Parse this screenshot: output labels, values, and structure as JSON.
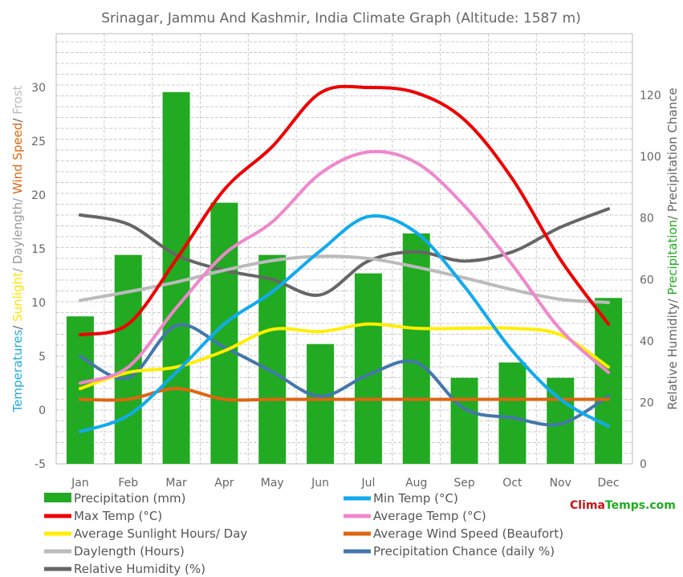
{
  "chart_data": {
    "type": "bar",
    "title": "Srinagar, Jammu And Kashmir, India Climate Graph (Altitude: 1587 m)",
    "categories": [
      "Jan",
      "Feb",
      "Mar",
      "Apr",
      "May",
      "Jun",
      "Jul",
      "Aug",
      "Sep",
      "Oct",
      "Nov",
      "Dec"
    ],
    "y_left": {
      "ticks": [
        "-5",
        "0",
        "5",
        "10",
        "15",
        "20",
        "25",
        "30"
      ],
      "ylim": [
        -5,
        35
      ],
      "label_parts": [
        {
          "text": "Temperatures",
          "color": "#22aadd"
        },
        {
          "text": "/ ",
          "color": "#666666"
        },
        {
          "text": "Sunlight",
          "color": "#ffe600"
        },
        {
          "text": "/ Daylength/ ",
          "color": "#999999"
        },
        {
          "text": "Wind Speed",
          "color": "#dd6611"
        },
        {
          "text": "/ ",
          "color": "#666666"
        },
        {
          "text": "Frost",
          "color": "#bbbbbb"
        }
      ]
    },
    "y_right": {
      "ticks": [
        "0",
        "20",
        "40",
        "60",
        "80",
        "100",
        "120"
      ],
      "ylim": [
        0,
        140
      ],
      "label_parts": [
        {
          "text": "Relative Humidity",
          "color": "#666666"
        },
        {
          "text": "/ ",
          "color": "#666666"
        },
        {
          "text": "Precipitation",
          "color": "#22aa22"
        },
        {
          "text": "/ Precipitation Chance",
          "color": "#666666"
        }
      ]
    },
    "series": [
      {
        "name": "Precipitation (mm)",
        "kind": "bar",
        "axis": "right",
        "color": "#22aa22",
        "values": [
          48,
          68,
          121,
          85,
          68,
          39,
          62,
          75,
          28,
          33,
          28,
          54
        ]
      },
      {
        "name": "Min Temp (°C)",
        "kind": "line",
        "axis": "left",
        "color": "#11aaee",
        "values": [
          -2,
          -0.5,
          3.5,
          8,
          11,
          14.8,
          18,
          16.5,
          11.5,
          5.5,
          1,
          -1.5
        ]
      },
      {
        "name": "Max Temp (°C)",
        "kind": "line",
        "axis": "left",
        "color": "#ee0000",
        "values": [
          7,
          8,
          14,
          20.5,
          24.5,
          29.5,
          30,
          29.5,
          27,
          21.5,
          14,
          8
        ]
      },
      {
        "name": "Average Temp (°C)",
        "kind": "line",
        "axis": "left",
        "color": "#ee88cc",
        "values": [
          2.5,
          4,
          9.5,
          14.5,
          17.5,
          22,
          24,
          23,
          19,
          13.5,
          7.5,
          3.5
        ]
      },
      {
        "name": "Average Sunlight Hours/ Day",
        "kind": "line",
        "axis": "left",
        "color": "#ffee00",
        "values": [
          2,
          3.5,
          4,
          5.5,
          7.5,
          7.3,
          8,
          7.6,
          7.6,
          7.6,
          7,
          4
        ]
      },
      {
        "name": "Average Wind Speed (Beaufort)",
        "kind": "line",
        "axis": "left",
        "color": "#dd6611",
        "values": [
          1,
          1,
          2,
          1,
          1,
          1,
          1,
          1,
          1,
          1,
          1,
          1
        ]
      },
      {
        "name": "Daylength (Hours)",
        "kind": "line",
        "axis": "left",
        "color": "#bbbbbb",
        "values": [
          10.2,
          11,
          11.9,
          13,
          13.9,
          14.3,
          14.1,
          13.3,
          12.3,
          11.2,
          10.3,
          10
        ]
      },
      {
        "name": "Precipitation Chance (daily %)",
        "kind": "line",
        "axis": "right",
        "color": "#4477aa",
        "values": [
          35,
          28,
          45,
          38,
          30,
          22,
          29,
          33,
          18,
          15,
          13,
          22
        ]
      },
      {
        "name": "Relative Humidity (%)",
        "kind": "line",
        "axis": "right",
        "color": "#666666",
        "values": [
          81,
          78,
          68,
          63,
          60,
          55,
          66,
          69,
          66,
          69,
          77,
          83
        ]
      }
    ],
    "grid": true,
    "legend_position": "bottom"
  },
  "legend": {
    "left": [
      {
        "label": "Precipitation (mm)",
        "color": "#22aa22",
        "swatch": "box"
      },
      {
        "label": "Max Temp (°C)",
        "color": "#ee0000",
        "swatch": "line"
      },
      {
        "label": "Average Sunlight Hours/ Day",
        "color": "#ffee00",
        "swatch": "line"
      },
      {
        "label": "Daylength (Hours)",
        "color": "#bbbbbb",
        "swatch": "line"
      },
      {
        "label": "Relative Humidity (%)",
        "color": "#666666",
        "swatch": "line"
      }
    ],
    "right": [
      {
        "label": "Min Temp (°C)",
        "color": "#11aaee",
        "swatch": "line"
      },
      {
        "label": "Average Temp (°C)",
        "color": "#ee88cc",
        "swatch": "line"
      },
      {
        "label": "Average Wind Speed (Beaufort)",
        "color": "#dd6611",
        "swatch": "line"
      },
      {
        "label": "Precipitation Chance (daily %)",
        "color": "#4477aa",
        "swatch": "line"
      }
    ]
  },
  "brand": {
    "part1": "Clima",
    "part2": "Temps.com"
  }
}
